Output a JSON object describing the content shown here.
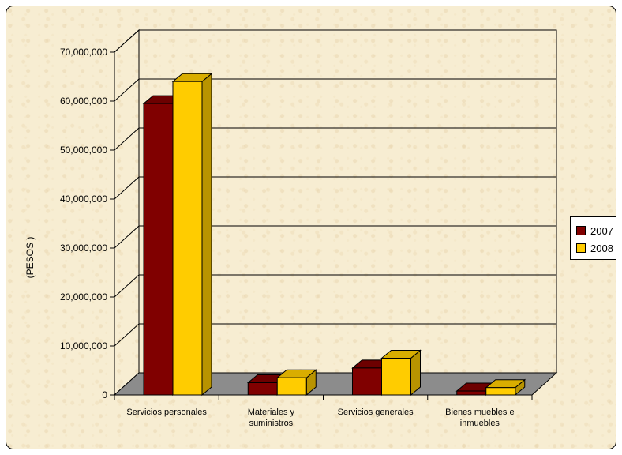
{
  "chart_data": {
    "type": "bar",
    "title": "",
    "ylabel": "(PESOS )",
    "xlabel": "",
    "ylim": [
      0,
      70000000
    ],
    "ytick_labels": [
      "0",
      "10,000,000",
      "20,000,000",
      "30,000,000",
      "40,000,000",
      "50,000,000",
      "60,000,000",
      "70,000,000"
    ],
    "grid": true,
    "legend_position": "right",
    "categories": [
      [
        "Servicios personales"
      ],
      [
        "Materiales y",
        "suministros"
      ],
      [
        "Servicios generales"
      ],
      [
        "Bienes muebles e",
        "inmuebles"
      ]
    ],
    "series": [
      {
        "name": "2007",
        "values": [
          59500000,
          2500000,
          5500000,
          800000
        ],
        "color": "#800000"
      },
      {
        "name": "2008",
        "values": [
          64000000,
          3500000,
          7500000,
          1500000
        ],
        "color": "#ffcc00"
      }
    ]
  }
}
